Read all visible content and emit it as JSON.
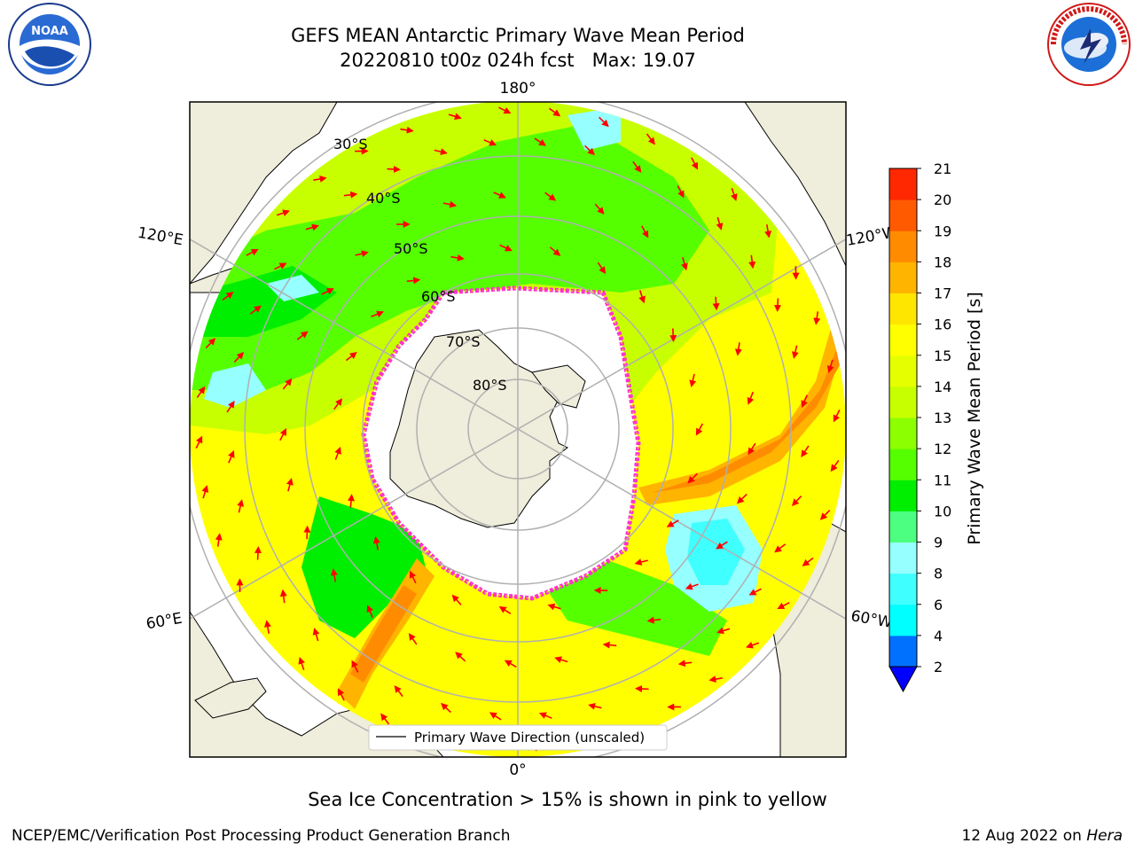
{
  "header": {
    "title_line1": "GEFS MEAN Antarctic Primary Wave Mean Period",
    "title_line2": "20220810 t00z 024h fcst   Max: 19.07"
  },
  "logos": {
    "left": "NOAA",
    "left_icon": "noaa-logo",
    "right_icon": "national-weather-service-logo",
    "right_ring_text": "NATIONAL WEATHER SERVICE"
  },
  "map": {
    "lon_labels": {
      "top": "180°",
      "bottom": "0°",
      "upper_left": "120°E",
      "upper_right": "120°W",
      "lower_left": "60°E",
      "lower_right": "60°W"
    },
    "lat_labels": [
      "30°S",
      "40°S",
      "50°S",
      "60°S",
      "70°S",
      "80°S"
    ],
    "legend": "Primary Wave Direction (unscaled)",
    "land_color": "#efeddb",
    "arrow_color": "#ff0000"
  },
  "colorbar": {
    "label": "Primary Wave Mean Period [s]",
    "ticks": [
      "2",
      "4",
      "6",
      "8",
      "9",
      "10",
      "11",
      "12",
      "13",
      "14",
      "15",
      "16",
      "17",
      "18",
      "19",
      "20",
      "21"
    ],
    "colors": [
      "#0070ff",
      "#00ffff",
      "#40ffff",
      "#96ffff",
      "#4dff80",
      "#00ee00",
      "#55ff00",
      "#8cff00",
      "#c8ff00",
      "#e6ff00",
      "#ffff00",
      "#ffe600",
      "#ffb400",
      "#ff8c00",
      "#ff5a00",
      "#ff2800"
    ],
    "extend_color": "#0000ff"
  },
  "note": "Sea Ice Concentration > 15% is shown in pink to yellow",
  "footer": {
    "left": "NCEP/EMC/Verification Post Processing Product Generation Branch",
    "right_prefix": "12 Aug 2022 on ",
    "right_machine": "Hera"
  }
}
